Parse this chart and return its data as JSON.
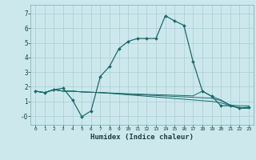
{
  "xlabel": "Humidex (Indice chaleur)",
  "bg_color": "#cce8ec",
  "grid_color": "#aacdd4",
  "line_color": "#1a6b6b",
  "xlim": [
    -0.5,
    23.5
  ],
  "ylim": [
    -0.6,
    7.6
  ],
  "xticks": [
    0,
    1,
    2,
    3,
    4,
    5,
    6,
    7,
    8,
    9,
    10,
    11,
    12,
    13,
    14,
    15,
    16,
    17,
    18,
    19,
    20,
    21,
    22,
    23
  ],
  "yticks": [
    0,
    1,
    2,
    3,
    4,
    5,
    6,
    7
  ],
  "ytick_labels": [
    "-0",
    "1",
    "2",
    "3",
    "4",
    "5",
    "6",
    "7"
  ],
  "line1_x": [
    0,
    1,
    2,
    3,
    4,
    5,
    6,
    7,
    8,
    9,
    10,
    11,
    12,
    13,
    14,
    15,
    16,
    17,
    18,
    19,
    20,
    21,
    22,
    23
  ],
  "line1_y": [
    1.7,
    1.6,
    1.8,
    1.9,
    1.1,
    -0.05,
    0.35,
    2.7,
    3.4,
    4.6,
    5.1,
    5.3,
    5.3,
    5.3,
    6.85,
    6.5,
    6.2,
    3.7,
    1.7,
    1.35,
    0.7,
    0.7,
    0.55,
    0.6
  ],
  "line2_x": [
    0,
    1,
    2,
    3,
    4,
    5,
    6,
    7,
    8,
    9,
    10,
    11,
    12,
    13,
    14,
    15,
    16,
    17,
    18,
    19,
    20,
    21,
    22,
    23
  ],
  "line2_y": [
    1.7,
    1.6,
    1.8,
    1.7,
    1.7,
    1.65,
    1.63,
    1.6,
    1.58,
    1.55,
    1.52,
    1.5,
    1.48,
    1.46,
    1.44,
    1.42,
    1.4,
    1.38,
    1.7,
    1.35,
    1.1,
    0.75,
    0.7,
    0.7
  ],
  "line3_x": [
    0,
    1,
    2,
    3,
    4,
    5,
    6,
    7,
    8,
    9,
    10,
    11,
    12,
    13,
    14,
    15,
    16,
    17,
    18,
    19,
    20,
    21,
    22,
    23
  ],
  "line3_y": [
    1.7,
    1.6,
    1.8,
    1.7,
    1.7,
    1.65,
    1.62,
    1.6,
    1.56,
    1.53,
    1.49,
    1.46,
    1.43,
    1.4,
    1.37,
    1.34,
    1.31,
    1.28,
    1.25,
    1.22,
    1.05,
    0.72,
    0.58,
    0.58
  ],
  "line4_x": [
    0,
    1,
    2,
    3,
    4,
    5,
    6,
    7,
    8,
    9,
    10,
    11,
    12,
    13,
    14,
    15,
    16,
    17,
    18,
    19,
    20,
    21,
    22,
    23
  ],
  "line4_y": [
    1.7,
    1.6,
    1.8,
    1.7,
    1.7,
    1.65,
    1.62,
    1.6,
    1.55,
    1.5,
    1.45,
    1.4,
    1.35,
    1.3,
    1.25,
    1.2,
    1.15,
    1.1,
    1.05,
    1.0,
    0.9,
    0.72,
    0.52,
    0.52
  ]
}
